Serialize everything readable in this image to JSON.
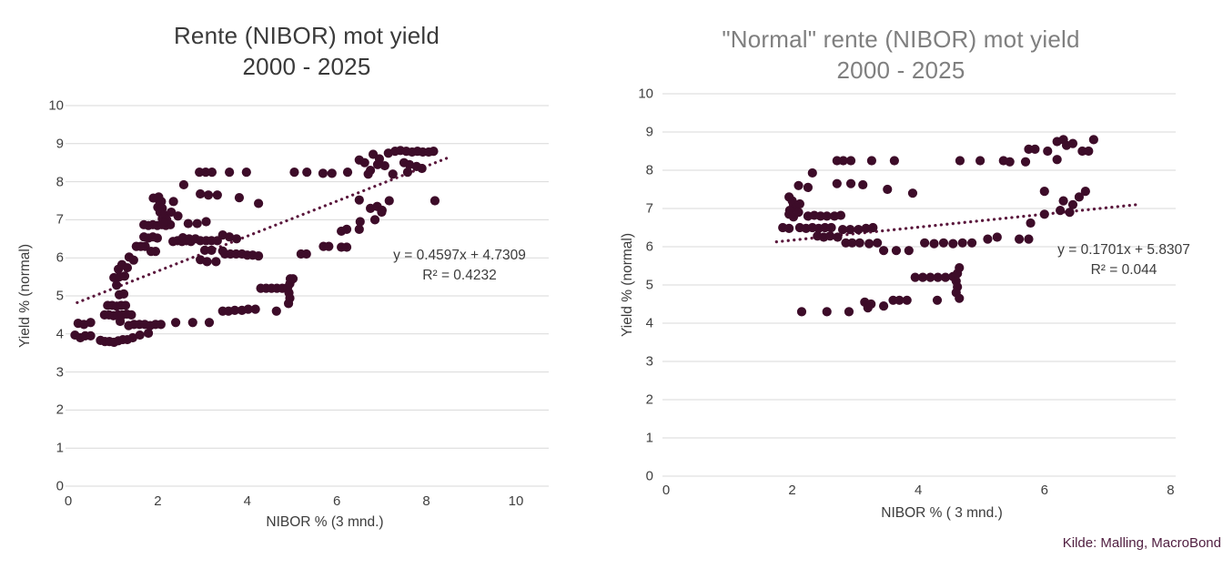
{
  "source_note": {
    "label": "Kilde: Malling, MacroBond",
    "color": "#4f1d3f"
  },
  "colors": {
    "point": "#3d0c29",
    "trendline": "#5a173c",
    "gridline": "#d9d9d9",
    "left_title": "#3a3a3a",
    "right_title": "#7f7f7f",
    "axis_text": "#3f3f3f"
  },
  "chart_data": [
    {
      "type": "scatter",
      "title_line1": "Rente (NIBOR) mot yield",
      "title_line2": "2000 - 2025",
      "x_axis": {
        "label": "NIBOR % (3 mnd.)",
        "ticks": [
          0,
          2,
          4,
          6,
          8,
          10
        ],
        "min": 0,
        "max": 10
      },
      "y_axis": {
        "label": "Yield % (normal)",
        "ticks": [
          0,
          1,
          2,
          3,
          4,
          5,
          6,
          7,
          8,
          9,
          10
        ],
        "min": 0,
        "max": 10
      },
      "grid": "horizontal",
      "legend": "none",
      "equation": {
        "line1": "y = 0.4597x + 4.7309",
        "line2": "R² = 0.4232"
      },
      "trendline": {
        "slope": 0.4597,
        "intercept": 4.7309,
        "x_start": 0.2,
        "x_end": 8.45,
        "style": "dotted"
      },
      "points": [
        [
          0.15,
          3.97
        ],
        [
          0.27,
          3.9
        ],
        [
          0.38,
          3.95
        ],
        [
          0.5,
          3.95
        ],
        [
          0.22,
          4.28
        ],
        [
          0.35,
          4.25
        ],
        [
          0.5,
          4.3
        ],
        [
          0.72,
          3.83
        ],
        [
          0.82,
          3.8
        ],
        [
          0.92,
          3.8
        ],
        [
          1.02,
          3.78
        ],
        [
          1.12,
          3.82
        ],
        [
          1.22,
          3.85
        ],
        [
          1.32,
          3.85
        ],
        [
          1.44,
          3.9
        ],
        [
          1.6,
          3.97
        ],
        [
          1.79,
          4.02
        ],
        [
          1.35,
          4.22
        ],
        [
          1.47,
          4.25
        ],
        [
          1.59,
          4.25
        ],
        [
          1.71,
          4.25
        ],
        [
          1.83,
          4.22
        ],
        [
          1.95,
          4.25
        ],
        [
          2.07,
          4.25
        ],
        [
          2.4,
          4.3
        ],
        [
          2.78,
          4.3
        ],
        [
          3.15,
          4.3
        ],
        [
          1.16,
          4.33
        ],
        [
          0.81,
          4.5
        ],
        [
          0.91,
          4.5
        ],
        [
          1.01,
          4.48
        ],
        [
          1.11,
          4.5
        ],
        [
          1.21,
          4.5
        ],
        [
          1.31,
          4.52
        ],
        [
          1.41,
          4.5
        ],
        [
          3.45,
          4.6
        ],
        [
          3.58,
          4.6
        ],
        [
          3.72,
          4.62
        ],
        [
          3.88,
          4.62
        ],
        [
          4.02,
          4.65
        ],
        [
          4.18,
          4.65
        ],
        [
          4.65,
          4.6
        ],
        [
          0.88,
          4.75
        ],
        [
          0.98,
          4.75
        ],
        [
          1.08,
          4.73
        ],
        [
          1.18,
          4.75
        ],
        [
          1.28,
          4.75
        ],
        [
          1.14,
          5.03
        ],
        [
          1.24,
          5.05
        ],
        [
          1.08,
          5.28
        ],
        [
          1.02,
          5.48
        ],
        [
          1.14,
          5.5
        ],
        [
          1.26,
          5.52
        ],
        [
          1.12,
          5.7
        ],
        [
          1.2,
          5.82
        ],
        [
          1.32,
          5.74
        ],
        [
          1.36,
          6.02
        ],
        [
          1.46,
          5.94
        ],
        [
          4.3,
          5.2
        ],
        [
          4.42,
          5.2
        ],
        [
          4.54,
          5.2
        ],
        [
          4.66,
          5.2
        ],
        [
          4.78,
          5.2
        ],
        [
          4.9,
          5.22
        ],
        [
          4.95,
          5.32
        ],
        [
          4.96,
          5.45
        ],
        [
          4.93,
          5.08
        ],
        [
          4.95,
          4.94
        ],
        [
          4.92,
          4.8
        ],
        [
          5.02,
          5.45
        ],
        [
          1.52,
          6.3
        ],
        [
          1.62,
          6.3
        ],
        [
          1.72,
          6.3
        ],
        [
          1.85,
          6.17
        ],
        [
          1.95,
          6.17
        ],
        [
          1.69,
          6.55
        ],
        [
          1.79,
          6.52
        ],
        [
          1.89,
          6.55
        ],
        [
          1.99,
          6.52
        ],
        [
          2.34,
          6.43
        ],
        [
          2.44,
          6.45
        ],
        [
          2.54,
          6.43
        ],
        [
          2.64,
          6.45
        ],
        [
          2.74,
          6.43
        ],
        [
          2.56,
          6.53
        ],
        [
          2.7,
          6.5
        ],
        [
          2.84,
          6.5
        ],
        [
          2.95,
          6.45
        ],
        [
          3.08,
          6.45
        ],
        [
          3.2,
          6.45
        ],
        [
          3.33,
          6.45
        ],
        [
          1.69,
          6.87
        ],
        [
          1.79,
          6.85
        ],
        [
          1.89,
          6.87
        ],
        [
          1.99,
          6.85
        ],
        [
          2.09,
          6.87
        ],
        [
          2.18,
          6.85
        ],
        [
          2.28,
          6.87
        ],
        [
          2.68,
          6.9
        ],
        [
          2.88,
          6.9
        ],
        [
          3.08,
          6.95
        ],
        [
          1.9,
          7.57
        ],
        [
          2.0,
          7.55
        ],
        [
          2.08,
          7.48
        ],
        [
          2.05,
          7.42
        ],
        [
          2.0,
          7.33
        ],
        [
          2.1,
          7.3
        ],
        [
          2.05,
          7.2
        ],
        [
          2.15,
          7.12
        ],
        [
          2.1,
          7.03
        ],
        [
          2.2,
          7.0
        ],
        [
          2.12,
          6.93
        ],
        [
          2.02,
          7.6
        ],
        [
          2.3,
          7.2
        ],
        [
          2.45,
          7.1
        ],
        [
          2.35,
          7.48
        ],
        [
          2.58,
          7.92
        ],
        [
          2.95,
          7.68
        ],
        [
          3.13,
          7.65
        ],
        [
          3.33,
          7.65
        ],
        [
          3.82,
          7.58
        ],
        [
          4.25,
          7.43
        ],
        [
          3.45,
          6.6
        ],
        [
          3.6,
          6.55
        ],
        [
          3.76,
          6.5
        ],
        [
          2.95,
          5.95
        ],
        [
          3.1,
          5.9
        ],
        [
          3.3,
          5.9
        ],
        [
          3.05,
          6.2
        ],
        [
          3.2,
          6.2
        ],
        [
          3.45,
          6.18
        ],
        [
          3.5,
          6.1
        ],
        [
          3.62,
          6.1
        ],
        [
          3.75,
          6.1
        ],
        [
          3.88,
          6.1
        ],
        [
          4.0,
          6.07
        ],
        [
          4.12,
          6.07
        ],
        [
          4.25,
          6.05
        ],
        [
          5.2,
          6.1
        ],
        [
          5.32,
          6.1
        ],
        [
          5.7,
          6.3
        ],
        [
          5.82,
          6.3
        ],
        [
          6.1,
          6.28
        ],
        [
          6.22,
          6.28
        ],
        [
          6.1,
          6.7
        ],
        [
          6.22,
          6.75
        ],
        [
          6.5,
          6.75
        ],
        [
          6.52,
          6.95
        ],
        [
          6.85,
          7.0
        ],
        [
          6.75,
          7.3
        ],
        [
          6.9,
          7.35
        ],
        [
          7.0,
          7.2
        ],
        [
          2.93,
          8.25
        ],
        [
          3.07,
          8.25
        ],
        [
          3.21,
          8.25
        ],
        [
          3.6,
          8.25
        ],
        [
          3.98,
          8.25
        ],
        [
          5.05,
          8.25
        ],
        [
          5.33,
          8.25
        ],
        [
          5.69,
          8.22
        ],
        [
          5.89,
          8.22
        ],
        [
          6.24,
          8.25
        ],
        [
          6.75,
          8.3
        ],
        [
          7.58,
          8.25
        ],
        [
          6.5,
          8.57
        ],
        [
          6.62,
          8.5
        ],
        [
          6.81,
          8.72
        ],
        [
          6.95,
          8.6
        ],
        [
          6.91,
          8.45
        ],
        [
          7.07,
          8.42
        ],
        [
          7.15,
          8.75
        ],
        [
          7.3,
          8.8
        ],
        [
          7.42,
          8.82
        ],
        [
          7.55,
          8.8
        ],
        [
          7.68,
          8.78
        ],
        [
          7.8,
          8.8
        ],
        [
          7.92,
          8.78
        ],
        [
          8.05,
          8.78
        ],
        [
          8.16,
          8.8
        ],
        [
          7.5,
          8.5
        ],
        [
          7.62,
          8.45
        ],
        [
          7.78,
          8.4
        ],
        [
          7.9,
          8.35
        ],
        [
          6.7,
          8.2
        ],
        [
          7.25,
          8.2
        ],
        [
          6.5,
          7.52
        ],
        [
          7.17,
          7.5
        ],
        [
          7.01,
          7.25
        ],
        [
          8.19,
          7.5
        ]
      ]
    },
    {
      "type": "scatter",
      "title_line1": "\"Normal\" rente (NIBOR) mot yield",
      "title_line2": "2000 - 2025",
      "x_axis": {
        "label": "NIBOR % ( 3 mnd.)",
        "ticks": [
          0,
          2,
          4,
          6,
          8
        ],
        "min": 0,
        "max": 8
      },
      "y_axis": {
        "label": "Yield % (normal)",
        "ticks": [
          0,
          1,
          2,
          3,
          4,
          5,
          6,
          7,
          8,
          9,
          10
        ],
        "min": 0,
        "max": 10
      },
      "grid": "horizontal",
      "legend": "none",
      "equation": {
        "line1": "y = 0.1701x + 5.8307",
        "line2": "R² = 0.044"
      },
      "trendline": {
        "slope": 0.1701,
        "intercept": 5.8307,
        "x_start": 1.75,
        "x_end": 7.45,
        "style": "dotted"
      },
      "points": [
        [
          2.71,
          8.25
        ],
        [
          2.81,
          8.25
        ],
        [
          2.93,
          8.25
        ],
        [
          3.26,
          8.25
        ],
        [
          3.62,
          8.25
        ],
        [
          4.66,
          8.25
        ],
        [
          4.98,
          8.25
        ],
        [
          5.35,
          8.25
        ],
        [
          5.45,
          8.22
        ],
        [
          5.7,
          8.22
        ],
        [
          6.2,
          8.28
        ],
        [
          2.32,
          7.93
        ],
        [
          2.1,
          7.6
        ],
        [
          2.25,
          7.55
        ],
        [
          2.71,
          7.65
        ],
        [
          2.93,
          7.65
        ],
        [
          3.12,
          7.62
        ],
        [
          3.51,
          7.5
        ],
        [
          3.91,
          7.4
        ],
        [
          1.95,
          7.3
        ],
        [
          2.0,
          7.2
        ],
        [
          2.02,
          7.1
        ],
        [
          2.06,
          7.03
        ],
        [
          2.12,
          7.12
        ],
        [
          1.96,
          6.95
        ],
        [
          1.95,
          6.85
        ],
        [
          2.02,
          6.78
        ],
        [
          2.1,
          6.9
        ],
        [
          2.25,
          6.8
        ],
        [
          2.35,
          6.82
        ],
        [
          2.45,
          6.8
        ],
        [
          2.55,
          6.8
        ],
        [
          2.67,
          6.8
        ],
        [
          2.77,
          6.82
        ],
        [
          1.85,
          6.5
        ],
        [
          1.95,
          6.48
        ],
        [
          2.12,
          6.5
        ],
        [
          2.22,
          6.48
        ],
        [
          2.32,
          6.5
        ],
        [
          2.42,
          6.48
        ],
        [
          2.52,
          6.5
        ],
        [
          2.62,
          6.5
        ],
        [
          2.8,
          6.45
        ],
        [
          2.92,
          6.45
        ],
        [
          3.05,
          6.45
        ],
        [
          3.17,
          6.48
        ],
        [
          3.28,
          6.5
        ],
        [
          2.4,
          6.28
        ],
        [
          2.5,
          6.25
        ],
        [
          2.6,
          6.28
        ],
        [
          2.72,
          6.25
        ],
        [
          2.85,
          6.1
        ],
        [
          2.95,
          6.1
        ],
        [
          3.07,
          6.1
        ],
        [
          3.22,
          6.08
        ],
        [
          3.35,
          6.1
        ],
        [
          4.1,
          6.1
        ],
        [
          4.25,
          6.08
        ],
        [
          4.4,
          6.1
        ],
        [
          4.55,
          6.08
        ],
        [
          4.7,
          6.1
        ],
        [
          4.85,
          6.1
        ],
        [
          5.1,
          6.2
        ],
        [
          5.25,
          6.25
        ],
        [
          5.6,
          6.2
        ],
        [
          5.75,
          6.2
        ],
        [
          3.45,
          5.9
        ],
        [
          3.65,
          5.9
        ],
        [
          3.85,
          5.9
        ],
        [
          3.95,
          5.2
        ],
        [
          4.07,
          5.2
        ],
        [
          4.19,
          5.2
        ],
        [
          4.31,
          5.2
        ],
        [
          4.43,
          5.2
        ],
        [
          4.55,
          5.22
        ],
        [
          4.62,
          5.3
        ],
        [
          4.65,
          5.45
        ],
        [
          4.6,
          5.1
        ],
        [
          4.62,
          4.95
        ],
        [
          4.6,
          4.8
        ],
        [
          4.65,
          4.65
        ],
        [
          2.15,
          4.3
        ],
        [
          2.55,
          4.3
        ],
        [
          2.9,
          4.3
        ],
        [
          3.15,
          4.55
        ],
        [
          3.25,
          4.5
        ],
        [
          3.2,
          4.4
        ],
        [
          3.45,
          4.45
        ],
        [
          3.6,
          4.6
        ],
        [
          3.7,
          4.6
        ],
        [
          3.82,
          4.6
        ],
        [
          4.3,
          4.6
        ],
        [
          5.78,
          6.62
        ],
        [
          6.0,
          6.85
        ],
        [
          6.25,
          6.95
        ],
        [
          6.4,
          6.9
        ],
        [
          6.0,
          7.45
        ],
        [
          6.3,
          7.2
        ],
        [
          6.45,
          7.1
        ],
        [
          6.55,
          7.3
        ],
        [
          6.65,
          7.45
        ],
        [
          5.75,
          8.55
        ],
        [
          5.85,
          8.55
        ],
        [
          6.05,
          8.5
        ],
        [
          6.2,
          8.75
        ],
        [
          6.3,
          8.8
        ],
        [
          6.35,
          8.65
        ],
        [
          6.45,
          8.7
        ],
        [
          6.6,
          8.5
        ],
        [
          6.7,
          8.5
        ],
        [
          6.78,
          8.8
        ]
      ]
    }
  ]
}
